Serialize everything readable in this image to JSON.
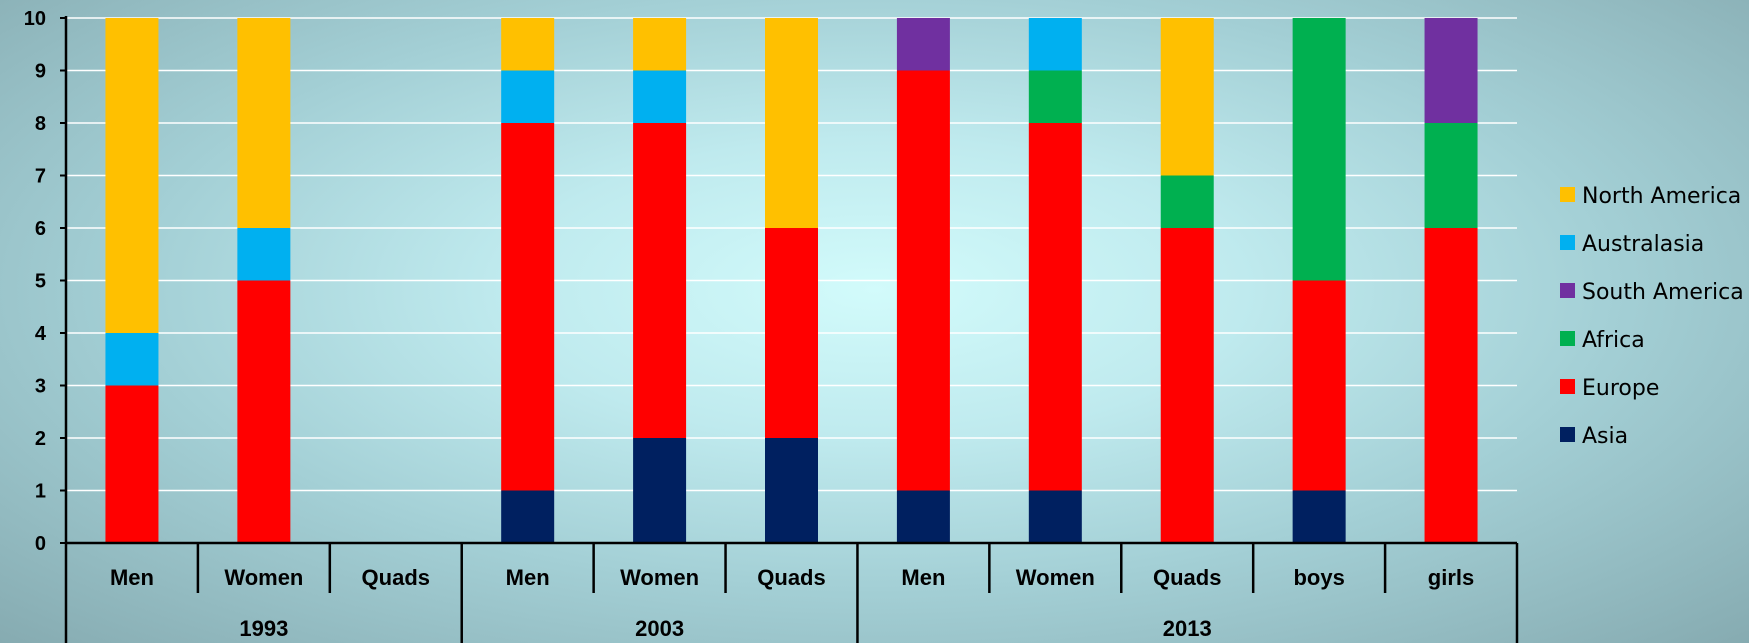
{
  "chart_data": {
    "type": "bar",
    "stacked": true,
    "groups": [
      {
        "label": "1993",
        "categories": [
          "Men",
          "Women",
          "Quads"
        ]
      },
      {
        "label": "2003",
        "categories": [
          "Men",
          "Women",
          "Quads"
        ]
      },
      {
        "label": "2013",
        "categories": [
          "Men",
          "Women",
          "Quads",
          "boys",
          "girls"
        ]
      }
    ],
    "categories": [
      "Men",
      "Women",
      "Quads",
      "Men",
      "Women",
      "Quads",
      "Men",
      "Women",
      "Quads",
      "boys",
      "girls"
    ],
    "series": [
      {
        "name": "Asia",
        "color": "#002060",
        "values": [
          0,
          0,
          0,
          1,
          2,
          2,
          1,
          1,
          0,
          1,
          0
        ]
      },
      {
        "name": "Europe",
        "color": "#ff0000",
        "values": [
          3,
          5,
          0,
          7,
          6,
          4,
          8,
          7,
          6,
          4,
          6
        ]
      },
      {
        "name": "Africa",
        "color": "#00b050",
        "values": [
          0,
          0,
          0,
          0,
          0,
          0,
          0,
          1,
          1,
          5,
          2
        ]
      },
      {
        "name": "South America",
        "color": "#7030a0",
        "values": [
          0,
          0,
          0,
          0,
          0,
          0,
          1,
          0,
          0,
          0,
          2
        ]
      },
      {
        "name": "Australasia",
        "color": "#00b0f0",
        "values": [
          1,
          1,
          0,
          1,
          1,
          0,
          0,
          1,
          0,
          0,
          0
        ]
      },
      {
        "name": "North America",
        "color": "#ffc000",
        "values": [
          6,
          4,
          0,
          1,
          1,
          4,
          0,
          0,
          3,
          0,
          0
        ]
      }
    ],
    "legend_order": [
      "North America",
      "Australasia",
      "South America",
      "Africa",
      "Europe",
      "Asia"
    ],
    "ylim": [
      0,
      10
    ],
    "yticks": [
      "0",
      "1",
      "2",
      "3",
      "4",
      "5",
      "6",
      "7",
      "8",
      "9",
      "10"
    ],
    "grid": true,
    "legend_position": "right"
  }
}
